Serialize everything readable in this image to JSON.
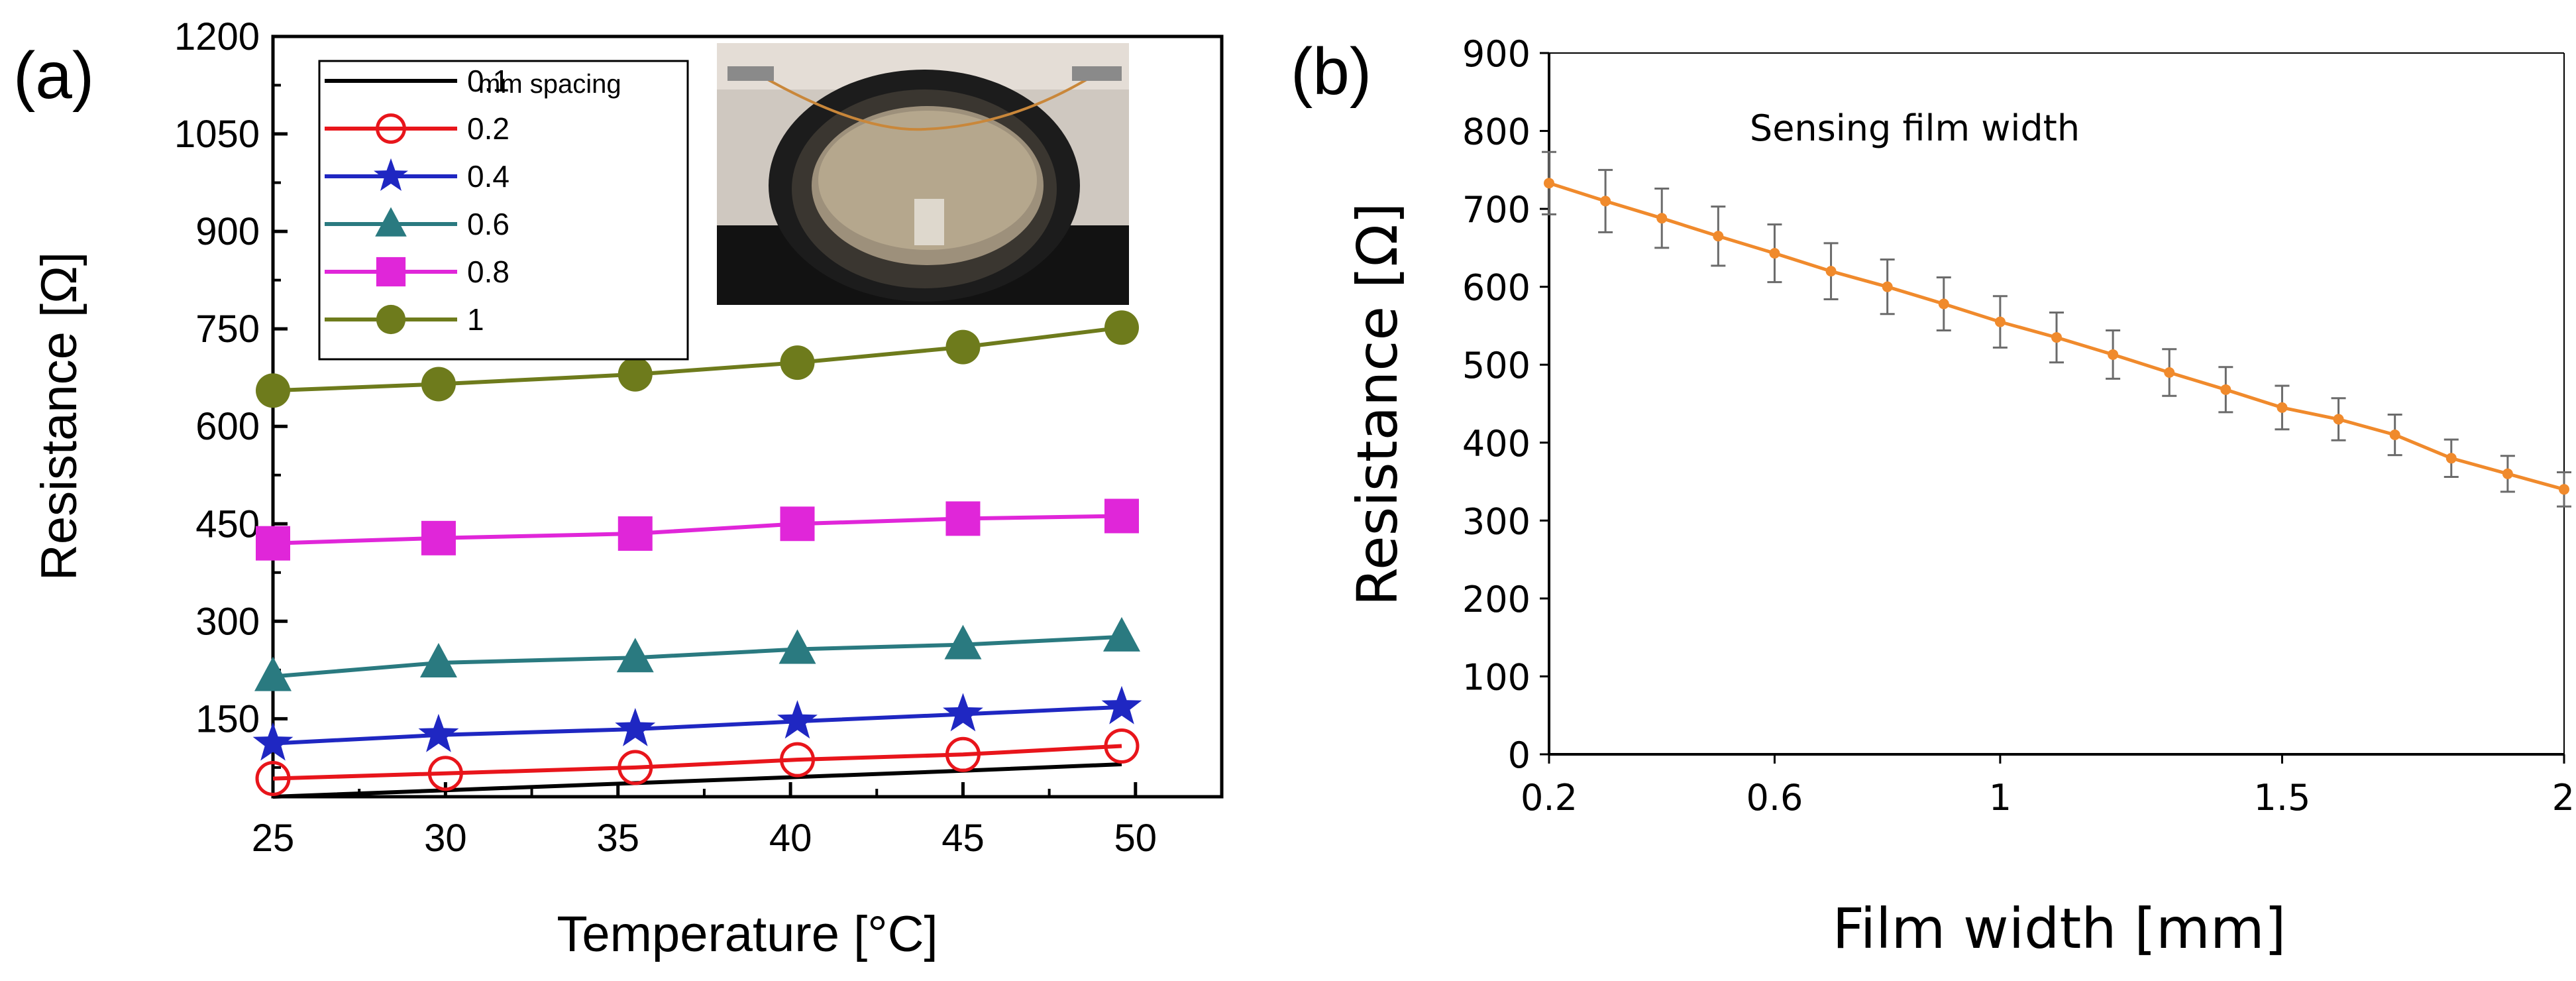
{
  "chart_data": [
    {
      "panel_label": "(a)",
      "type": "line",
      "xlabel": "Temperature [°C]",
      "ylabel": "Resistance [Ω]",
      "xlim": [
        25,
        52.5
      ],
      "ylim": [
        30,
        1200
      ],
      "xticks": [
        25,
        30,
        35,
        40,
        45,
        50
      ],
      "yticks": [
        150,
        300,
        450,
        600,
        750,
        900,
        1050,
        1200
      ],
      "legend_title": "mm spacing",
      "legend_position": "top-left",
      "inset_photo": "experimental-setup-photo",
      "series": [
        {
          "name": "0.1",
          "marker": "none",
          "color": "#000000",
          "x": [
            25,
            30,
            35,
            40,
            45,
            49.6
          ],
          "y": [
            30,
            40,
            50,
            60,
            70,
            80
          ]
        },
        {
          "name": "0.2",
          "marker": "open-circle",
          "color": "#e8151b",
          "x": [
            25,
            30,
            35.5,
            40.2,
            45,
            49.6
          ],
          "y": [
            58,
            66,
            75,
            87,
            95,
            108
          ]
        },
        {
          "name": "0.4",
          "marker": "star",
          "color": "#1f27c2",
          "x": [
            25,
            29.8,
            35.5,
            40.2,
            45,
            49.6
          ],
          "y": [
            112,
            125,
            134,
            146,
            157,
            168
          ]
        },
        {
          "name": "0.6",
          "marker": "triangle",
          "color": "#2a7a80",
          "x": [
            25,
            29.8,
            35.5,
            40.2,
            45,
            49.6
          ],
          "y": [
            215,
            236,
            244,
            257,
            264,
            276
          ]
        },
        {
          "name": "0.8",
          "marker": "square",
          "color": "#e026d9",
          "x": [
            25,
            29.8,
            35.5,
            40.2,
            45,
            49.6
          ],
          "y": [
            420,
            428,
            435,
            450,
            458,
            462
          ]
        },
        {
          "name": "1",
          "marker": "filled-circle",
          "color": "#6e7b1c",
          "x": [
            25,
            29.8,
            35.5,
            40.2,
            45,
            49.6
          ],
          "y": [
            655,
            665,
            680,
            698,
            722,
            752
          ]
        }
      ]
    },
    {
      "panel_label": "(b)",
      "type": "line",
      "annotation": "Sensing film width",
      "xlabel": "Film width [mm]",
      "ylabel": "Resistance [Ω]",
      "xlim": [
        0.2,
        2
      ],
      "ylim": [
        0,
        900
      ],
      "xticks": [
        "0.2",
        "0.6",
        "1",
        "1.5",
        "2"
      ],
      "xtick_values": [
        0.2,
        0.6,
        1,
        1.5,
        2
      ],
      "yticks": [
        0,
        100,
        200,
        300,
        400,
        500,
        600,
        700,
        800,
        900
      ],
      "series": [
        {
          "name": "Resistance",
          "color": "#f08a2c",
          "marker": "dot",
          "error_bars": true,
          "x": [
            0.2,
            0.3,
            0.4,
            0.5,
            0.6,
            0.7,
            0.8,
            0.9,
            1.0,
            1.1,
            1.2,
            1.3,
            1.4,
            1.5,
            1.6,
            1.7,
            1.8,
            1.9,
            2.0
          ],
          "y": [
            733,
            710,
            688,
            665,
            643,
            620,
            600,
            578,
            555,
            535,
            513,
            490,
            468,
            445,
            430,
            410,
            380,
            360,
            340
          ],
          "err": [
            40,
            40,
            38,
            38,
            37,
            36,
            35,
            34,
            33,
            32,
            31,
            30,
            29,
            28,
            27,
            26,
            24,
            23,
            22
          ]
        }
      ]
    }
  ]
}
